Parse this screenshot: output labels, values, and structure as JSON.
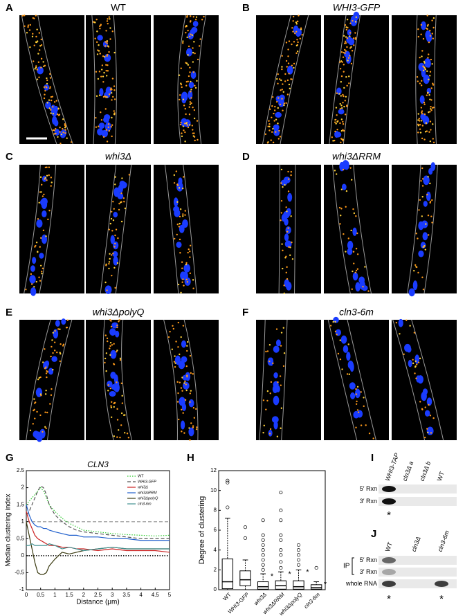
{
  "panels": [
    {
      "letter": "A",
      "title": "WT"
    },
    {
      "letter": "B",
      "title": "WHI3-GFP"
    },
    {
      "letter": "C",
      "title": "whi3Δ"
    },
    {
      "letter": "D",
      "title": "whi3ΔRRM"
    },
    {
      "letter": "E",
      "title": "whi3ΔpolyQ"
    },
    {
      "letter": "F",
      "title": "cln3-6m"
    }
  ],
  "chart_data": [
    {
      "type": "line",
      "letter": "G",
      "title": "CLN3",
      "x_label": "Distance (μm)",
      "y_label": "Median clustering index",
      "x": [
        0,
        0.1,
        0.2,
        0.3,
        0.4,
        0.5,
        0.6,
        0.7,
        0.8,
        1,
        1.25,
        1.5,
        1.75,
        2,
        2.5,
        3,
        3.5,
        4,
        4.5,
        5
      ],
      "series": [
        {
          "name": "WT",
          "color": "#33cc33",
          "dash": "dotted",
          "values": [
            1.5,
            1.6,
            1.7,
            1.8,
            1.9,
            2.0,
            1.9,
            1.7,
            1.5,
            1.3,
            1.1,
            0.95,
            0.85,
            0.75,
            0.7,
            0.65,
            0.62,
            0.6,
            0.58,
            0.6
          ]
        },
        {
          "name": "WHI3-GFP",
          "color": "#555555",
          "dash": "dashed",
          "values": [
            1.2,
            1.3,
            1.5,
            1.7,
            1.9,
            2.05,
            2.0,
            1.8,
            1.5,
            1.2,
            1.0,
            0.85,
            0.75,
            0.7,
            0.65,
            0.6,
            0.55,
            0.5,
            0.5,
            0.5
          ]
        },
        {
          "name": "whi3Δ",
          "color": "#cc2222",
          "dash": "solid",
          "values": [
            1.3,
            1.0,
            0.8,
            0.6,
            0.5,
            0.45,
            0.4,
            0.35,
            0.3,
            0.3,
            0.25,
            0.25,
            0.2,
            0.2,
            0.15,
            0.2,
            0.15,
            0.15,
            0.15,
            0.1
          ]
        },
        {
          "name": "whi3ΔRRM",
          "color": "#1f5fcc",
          "dash": "solid",
          "values": [
            1.5,
            1.2,
            1.0,
            0.9,
            0.85,
            0.85,
            0.8,
            0.8,
            0.75,
            0.7,
            0.65,
            0.6,
            0.6,
            0.55,
            0.55,
            0.5,
            0.5,
            0.45,
            0.45,
            0.45
          ]
        },
        {
          "name": "whi3ΔpolyQ",
          "color": "#3a3a10",
          "dash": "solid",
          "values": [
            1.0,
            0.6,
            0.2,
            -0.2,
            -0.5,
            -0.55,
            -0.55,
            -0.5,
            -0.3,
            -0.1,
            0.1,
            0.05,
            0.1,
            0.15,
            0.2,
            0.25,
            0.2,
            0.2,
            0.2,
            0.2
          ]
        },
        {
          "name": "cln3-6m",
          "color": "#3f8f8f",
          "dash": "solid",
          "values": [
            0.3,
            0.3,
            0.35,
            0.3,
            0.3,
            0.3,
            0.3,
            0.3,
            0.35,
            0.3,
            0.2,
            0.25,
            0.2,
            0.15,
            0.2,
            0.25,
            0.2,
            0.2,
            0.2,
            0.2
          ]
        }
      ],
      "reference_lines": [
        {
          "value": 1,
          "color": "#aaaaaa",
          "dash": "dashed"
        },
        {
          "value": 0,
          "color": "#000000",
          "dash": "dotted"
        }
      ],
      "xlim": [
        0,
        5
      ],
      "xticks": [
        0,
        0.5,
        1,
        1.5,
        2,
        2.5,
        3,
        3.5,
        4,
        4.5,
        5
      ],
      "ylim": [
        -1,
        2.5
      ],
      "yticks": [
        -1,
        -0.5,
        0,
        0.5,
        1,
        1.5,
        2,
        2.5
      ],
      "legend": "top-right"
    },
    {
      "type": "box",
      "letter": "H",
      "y_label": "Degree of clustering",
      "color": "#000000",
      "categories": [
        "WT",
        "WHI3-GFP",
        "whi3Δ",
        "whi3ΔRRM",
        "whi3ΔpolyQ",
        "cln3-6m"
      ],
      "boxes": [
        {
          "whisker_low": 0,
          "q1": 0.1,
          "median": 0.8,
          "q3": 3.1,
          "whisker_high": 7.2,
          "outliers": [
            8.3,
            10.8,
            11
          ]
        },
        {
          "whisker_low": 0,
          "q1": 0.4,
          "median": 1,
          "q3": 1.9,
          "whisker_high": 3,
          "outliers": [
            5.2,
            6.3
          ]
        },
        {
          "whisker_low": 0,
          "q1": 0.05,
          "median": 0.3,
          "q3": 0.8,
          "whisker_high": 1.6,
          "outliers": [
            2,
            2.5,
            3,
            3.5,
            4,
            4.5,
            5,
            5.5,
            7
          ],
          "mark": "*"
        },
        {
          "whisker_low": 0,
          "q1": 0.05,
          "median": 0.4,
          "q3": 0.9,
          "whisker_high": 1.8,
          "outliers": [
            2.2,
            2.8,
            3.5,
            4,
            5,
            5.5,
            7,
            8,
            9.8
          ],
          "mark": "*"
        },
        {
          "whisker_low": 0,
          "q1": 0.05,
          "median": 0.3,
          "q3": 0.9,
          "whisker_high": 2,
          "outliers": [
            2.5,
            3,
            3.5,
            4,
            4.5
          ],
          "mark": "*"
        },
        {
          "whisker_low": 0,
          "q1": 0.05,
          "median": 0.2,
          "q3": 0.5,
          "whisker_high": 0.8,
          "outliers": [
            2.2
          ],
          "mark": "*"
        }
      ],
      "ylim": [
        0,
        12
      ],
      "yticks": [
        0,
        2,
        4,
        6,
        8,
        10,
        12
      ]
    }
  ],
  "gels": [
    {
      "letter": "I",
      "lanes": [
        "WHI3-TAP",
        "cln3Δ a",
        "cln3Δ b",
        "WT"
      ],
      "rows": [
        "5′ Rxn",
        "3′ Rxn"
      ],
      "mark": "*"
    },
    {
      "letter": "J",
      "lanes": [
        "WT",
        "cln3Δ",
        "cln3-6m"
      ],
      "group": "IP",
      "rows": [
        "5′ Rxn",
        "3′ Rxn",
        "whole RNA"
      ],
      "mark": "*"
    }
  ]
}
